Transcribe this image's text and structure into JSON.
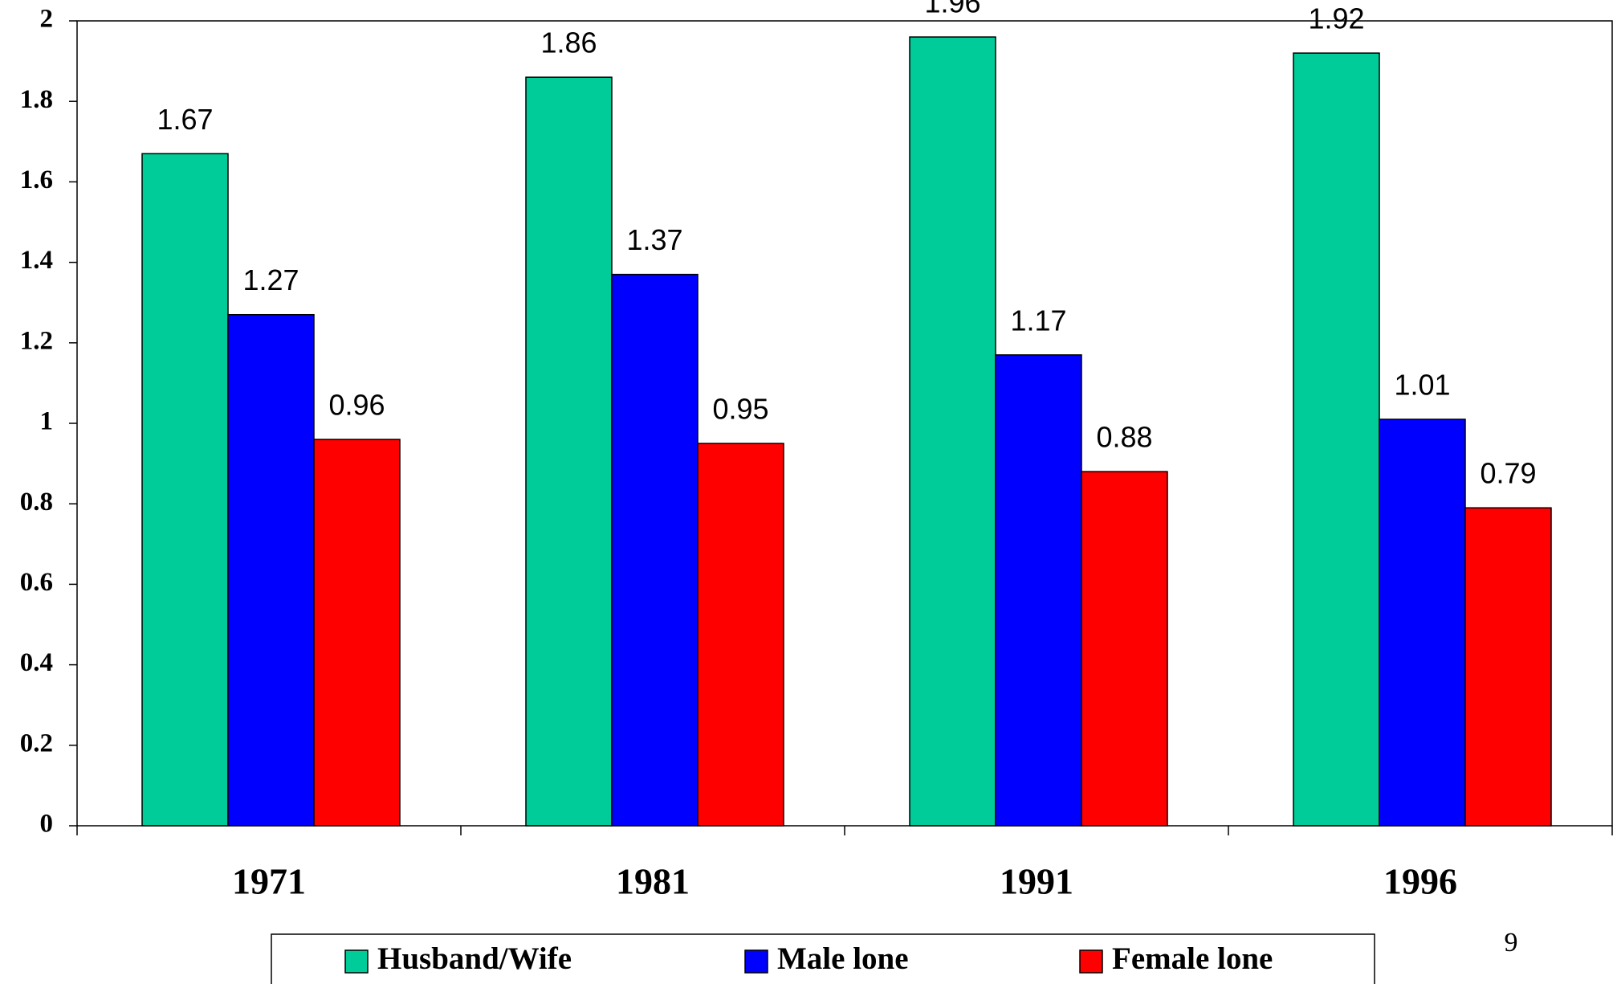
{
  "chart_data": {
    "type": "bar",
    "categories": [
      "1971",
      "1981",
      "1991",
      "1996"
    ],
    "series": [
      {
        "name": "Husband/Wife",
        "color": "#00cc99",
        "values": [
          1.67,
          1.86,
          1.96,
          1.92
        ]
      },
      {
        "name": "Male lone",
        "color": "#0000ff",
        "values": [
          1.27,
          1.37,
          1.17,
          1.01
        ]
      },
      {
        "name": "Female lone",
        "color": "#ff0000",
        "values": [
          0.96,
          0.95,
          0.88,
          0.79
        ]
      }
    ],
    "ylim": [
      0,
      2
    ],
    "yticks": [
      0,
      0.2,
      0.4,
      0.6,
      0.8,
      1,
      1.2,
      1.4,
      1.6,
      1.8,
      2
    ],
    "grid": false,
    "legend": "bottom",
    "annotations": [
      "9"
    ]
  }
}
